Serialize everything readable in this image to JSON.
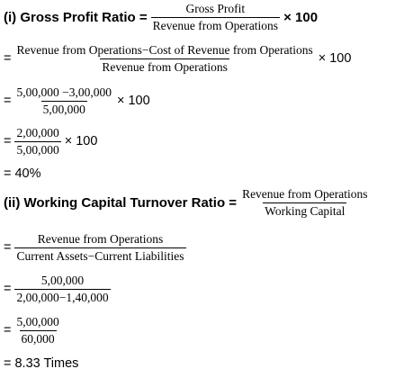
{
  "heading1": {
    "label": "(i) Gross Profit Ratio =",
    "num": "Gross Profit",
    "den": "Revenue from Operations",
    "tail": "× 100"
  },
  "step1": {
    "eq": "=",
    "num": "Revenue from Operations−Cost of Revenue from Operations",
    "den": "Revenue from Operations",
    "tail": "× 100"
  },
  "step2": {
    "eq": "=",
    "num": "5,00,000 −3,00,000",
    "den": "5,00,000",
    "tail": "× 100"
  },
  "step3": {
    "eq": "=",
    "num": "2,00,000",
    "den": "5,00,000",
    "tail": "× 100"
  },
  "result1": "= 40%",
  "heading2": {
    "label": "(ii) Working Capital Turnover Ratio =",
    "num": "Revenue from Operations",
    "den": "Working Capital"
  },
  "step4": {
    "eq": "=",
    "num": "Revenue from Operations",
    "den": "Current Assets−Current Liabilities"
  },
  "step5": {
    "eq": "=",
    "num": "5,00,000",
    "den": "2,00,000−1,40,000"
  },
  "step6": {
    "eq": "=",
    "num": "5,00,000",
    "den": "60,000"
  },
  "result2": "= 8.33 Times"
}
